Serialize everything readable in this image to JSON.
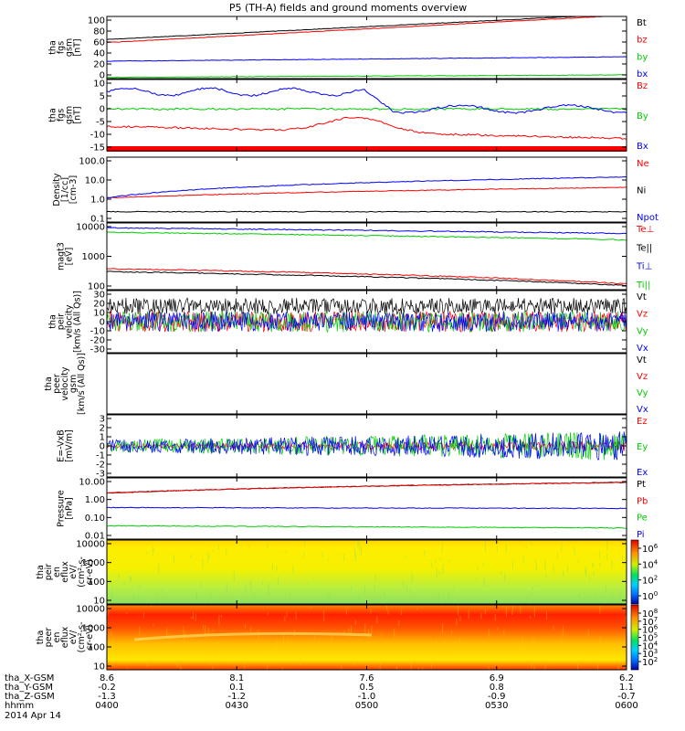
{
  "title": "P5 (TH-A) fields and ground moments overview",
  "date_label": "2014 Apr 14",
  "colors": {
    "black": "#000000",
    "red": "#ff0000",
    "green": "#00cc00",
    "blue": "#0000ff"
  },
  "chart_data": [
    {
      "id": "fgs_gsm",
      "type": "line",
      "ylabel": [
        "tha",
        "fgs",
        "gsm",
        "[nT]"
      ],
      "yticks": [
        "100",
        "80",
        "60",
        "40",
        "20",
        "0"
      ],
      "ylim": [
        0,
        100
      ],
      "series": [
        {
          "name": "Bt",
          "color": "black",
          "start": 63,
          "end": 104
        },
        {
          "name": "bz",
          "color": "red",
          "start": 58,
          "end": 102
        },
        {
          "name": "by",
          "color": "green",
          "start": 2,
          "end": 6
        },
        {
          "name": "bx",
          "color": "blue",
          "start": 28,
          "end": 35
        }
      ]
    },
    {
      "id": "fgs_dsl",
      "type": "line",
      "ylabel": [
        "tha",
        "fgs",
        "gsm",
        "[nT]"
      ],
      "yticks": [
        "10",
        "5",
        "0",
        "-5",
        "-10",
        "-15"
      ],
      "ylim": [
        -18,
        11
      ],
      "series": [
        {
          "name": "Bz",
          "color": "red",
          "start": -8,
          "end": -13
        },
        {
          "name": "By",
          "color": "green",
          "start": -1,
          "end": -1
        },
        {
          "name": "Bx",
          "color": "blue",
          "start": 7,
          "end": -1
        }
      ]
    },
    {
      "id": "density",
      "type": "line",
      "log": true,
      "ylabel": [
        "Density",
        "[1/cc]",
        "[cm-3]"
      ],
      "yticks": [
        "100.0",
        "10.0",
        "1.0",
        "0.1"
      ],
      "ylim": [
        0.1,
        100
      ],
      "series": [
        {
          "name": "Ne",
          "color": "red",
          "start": 1.3,
          "end": 4
        },
        {
          "name": "Ni",
          "color": "black",
          "start": 0.3,
          "end": 0.3
        },
        {
          "name": "Npot",
          "color": "blue",
          "start": 1.3,
          "end": 12
        }
      ]
    },
    {
      "id": "temperature",
      "type": "line",
      "log": true,
      "ylabel": [
        "magt3",
        "[eV]"
      ],
      "yticks": [
        "10000",
        "1000",
        "100"
      ],
      "ylim": [
        50,
        12000
      ],
      "series": [
        {
          "name": "Te⊥",
          "color": "red",
          "start": 280,
          "end": 80
        },
        {
          "name": "Te||",
          "color": "black",
          "start": 220,
          "end": 70
        },
        {
          "name": "Ti⊥",
          "color": "blue",
          "start": 8000,
          "end": 5000
        },
        {
          "name": "Ti||",
          "color": "green",
          "start": 5500,
          "end": 3000
        }
      ]
    },
    {
      "id": "peir_velocity",
      "type": "line",
      "ylabel": [
        "tha",
        "peir",
        "velocity",
        "[km/s (All Qs)]"
      ],
      "yticks": [
        "30",
        "20",
        "10",
        "0",
        "-10",
        "-20",
        "-30"
      ],
      "ylim": [
        -30,
        30
      ],
      "series": [
        {
          "name": "Vt",
          "color": "black",
          "start": 15,
          "end": 15
        },
        {
          "name": "Vz",
          "color": "red",
          "start": 0,
          "end": 0
        },
        {
          "name": "Vy",
          "color": "green",
          "start": 0,
          "end": 0
        },
        {
          "name": "Vx",
          "color": "blue",
          "start": 0,
          "end": 0
        }
      ]
    },
    {
      "id": "peer_velocity",
      "type": "line",
      "ylabel": [
        "tha",
        "peer",
        "velocity",
        "gsm",
        "[km/s (All Qs)]"
      ],
      "yticks": [],
      "ylim": [
        -30,
        30
      ],
      "series": [
        {
          "name": "Vt",
          "color": "black"
        },
        {
          "name": "Vz",
          "color": "red"
        },
        {
          "name": "Vy",
          "color": "green"
        },
        {
          "name": "Vx",
          "color": "blue"
        }
      ]
    },
    {
      "id": "efield",
      "type": "line",
      "ylabel": [
        "E=-VxB",
        "[mV/m]"
      ],
      "yticks": [
        "3",
        "2",
        "1",
        "0",
        "-1",
        "-2",
        "-3"
      ],
      "ylim": [
        -3,
        3
      ],
      "series": [
        {
          "name": "Ez",
          "color": "red",
          "start": 0,
          "end": 0
        },
        {
          "name": "Ey",
          "color": "green",
          "start": 0,
          "end": 0
        },
        {
          "name": "Ex",
          "color": "blue",
          "start": 0,
          "end": 0
        }
      ]
    },
    {
      "id": "pressure",
      "type": "line",
      "log": true,
      "ylabel": [
        "Pressure",
        "[nPa]"
      ],
      "yticks": [
        "10.00",
        "1.00",
        "0.10",
        "0.01"
      ],
      "ylim": [
        0.01,
        10
      ],
      "series": [
        {
          "name": "Pt",
          "color": "black",
          "start": 1.8,
          "end": 6
        },
        {
          "name": "Pb",
          "color": "red",
          "start": 1.8,
          "end": 6
        },
        {
          "name": "Pe",
          "color": "green",
          "start": 0.045,
          "end": 0.035
        },
        {
          "name": "Pi",
          "color": "blue",
          "start": 0.35,
          "end": 0.32
        }
      ]
    },
    {
      "id": "peir_spec",
      "type": "heatmap",
      "ylabel": [
        "tha",
        "peir",
        "en",
        "eflux",
        "eV/",
        "(cm^2-s-",
        "sr-eV)"
      ],
      "yticks": [
        "10000",
        "1000",
        "100",
        "10"
      ],
      "colorbar_ticks": [
        "10^6",
        "10^4",
        "10^2",
        "10^0"
      ]
    },
    {
      "id": "peer_spec",
      "type": "heatmap",
      "ylabel": [
        "tha",
        "peer",
        "en",
        "eflux",
        "eV/",
        "(cm^2-s-",
        "sr-eV)"
      ],
      "yticks": [
        "10000",
        "1000",
        "100",
        "10"
      ],
      "colorbar_ticks": [
        "10^8",
        "10^7",
        "10^6",
        "10^5",
        "10^4",
        "10^3",
        "10^2"
      ]
    }
  ],
  "xaxis": {
    "rows": [
      {
        "label": "tha_X-GSM",
        "values": [
          "8.6",
          "8.1",
          "7.6",
          "6.9",
          "6.2"
        ]
      },
      {
        "label": "tha_Y-GSM",
        "values": [
          "-0.2",
          "0.1",
          "0.5",
          "0.8",
          "1.1"
        ]
      },
      {
        "label": "tha_Z-GSM",
        "values": [
          "-1.3",
          "-1.2",
          "-1.0",
          "-0.9",
          "-0.7"
        ]
      },
      {
        "label": "hhmm",
        "values": [
          "0400",
          "0430",
          "0500",
          "0530",
          "0600"
        ]
      }
    ]
  }
}
